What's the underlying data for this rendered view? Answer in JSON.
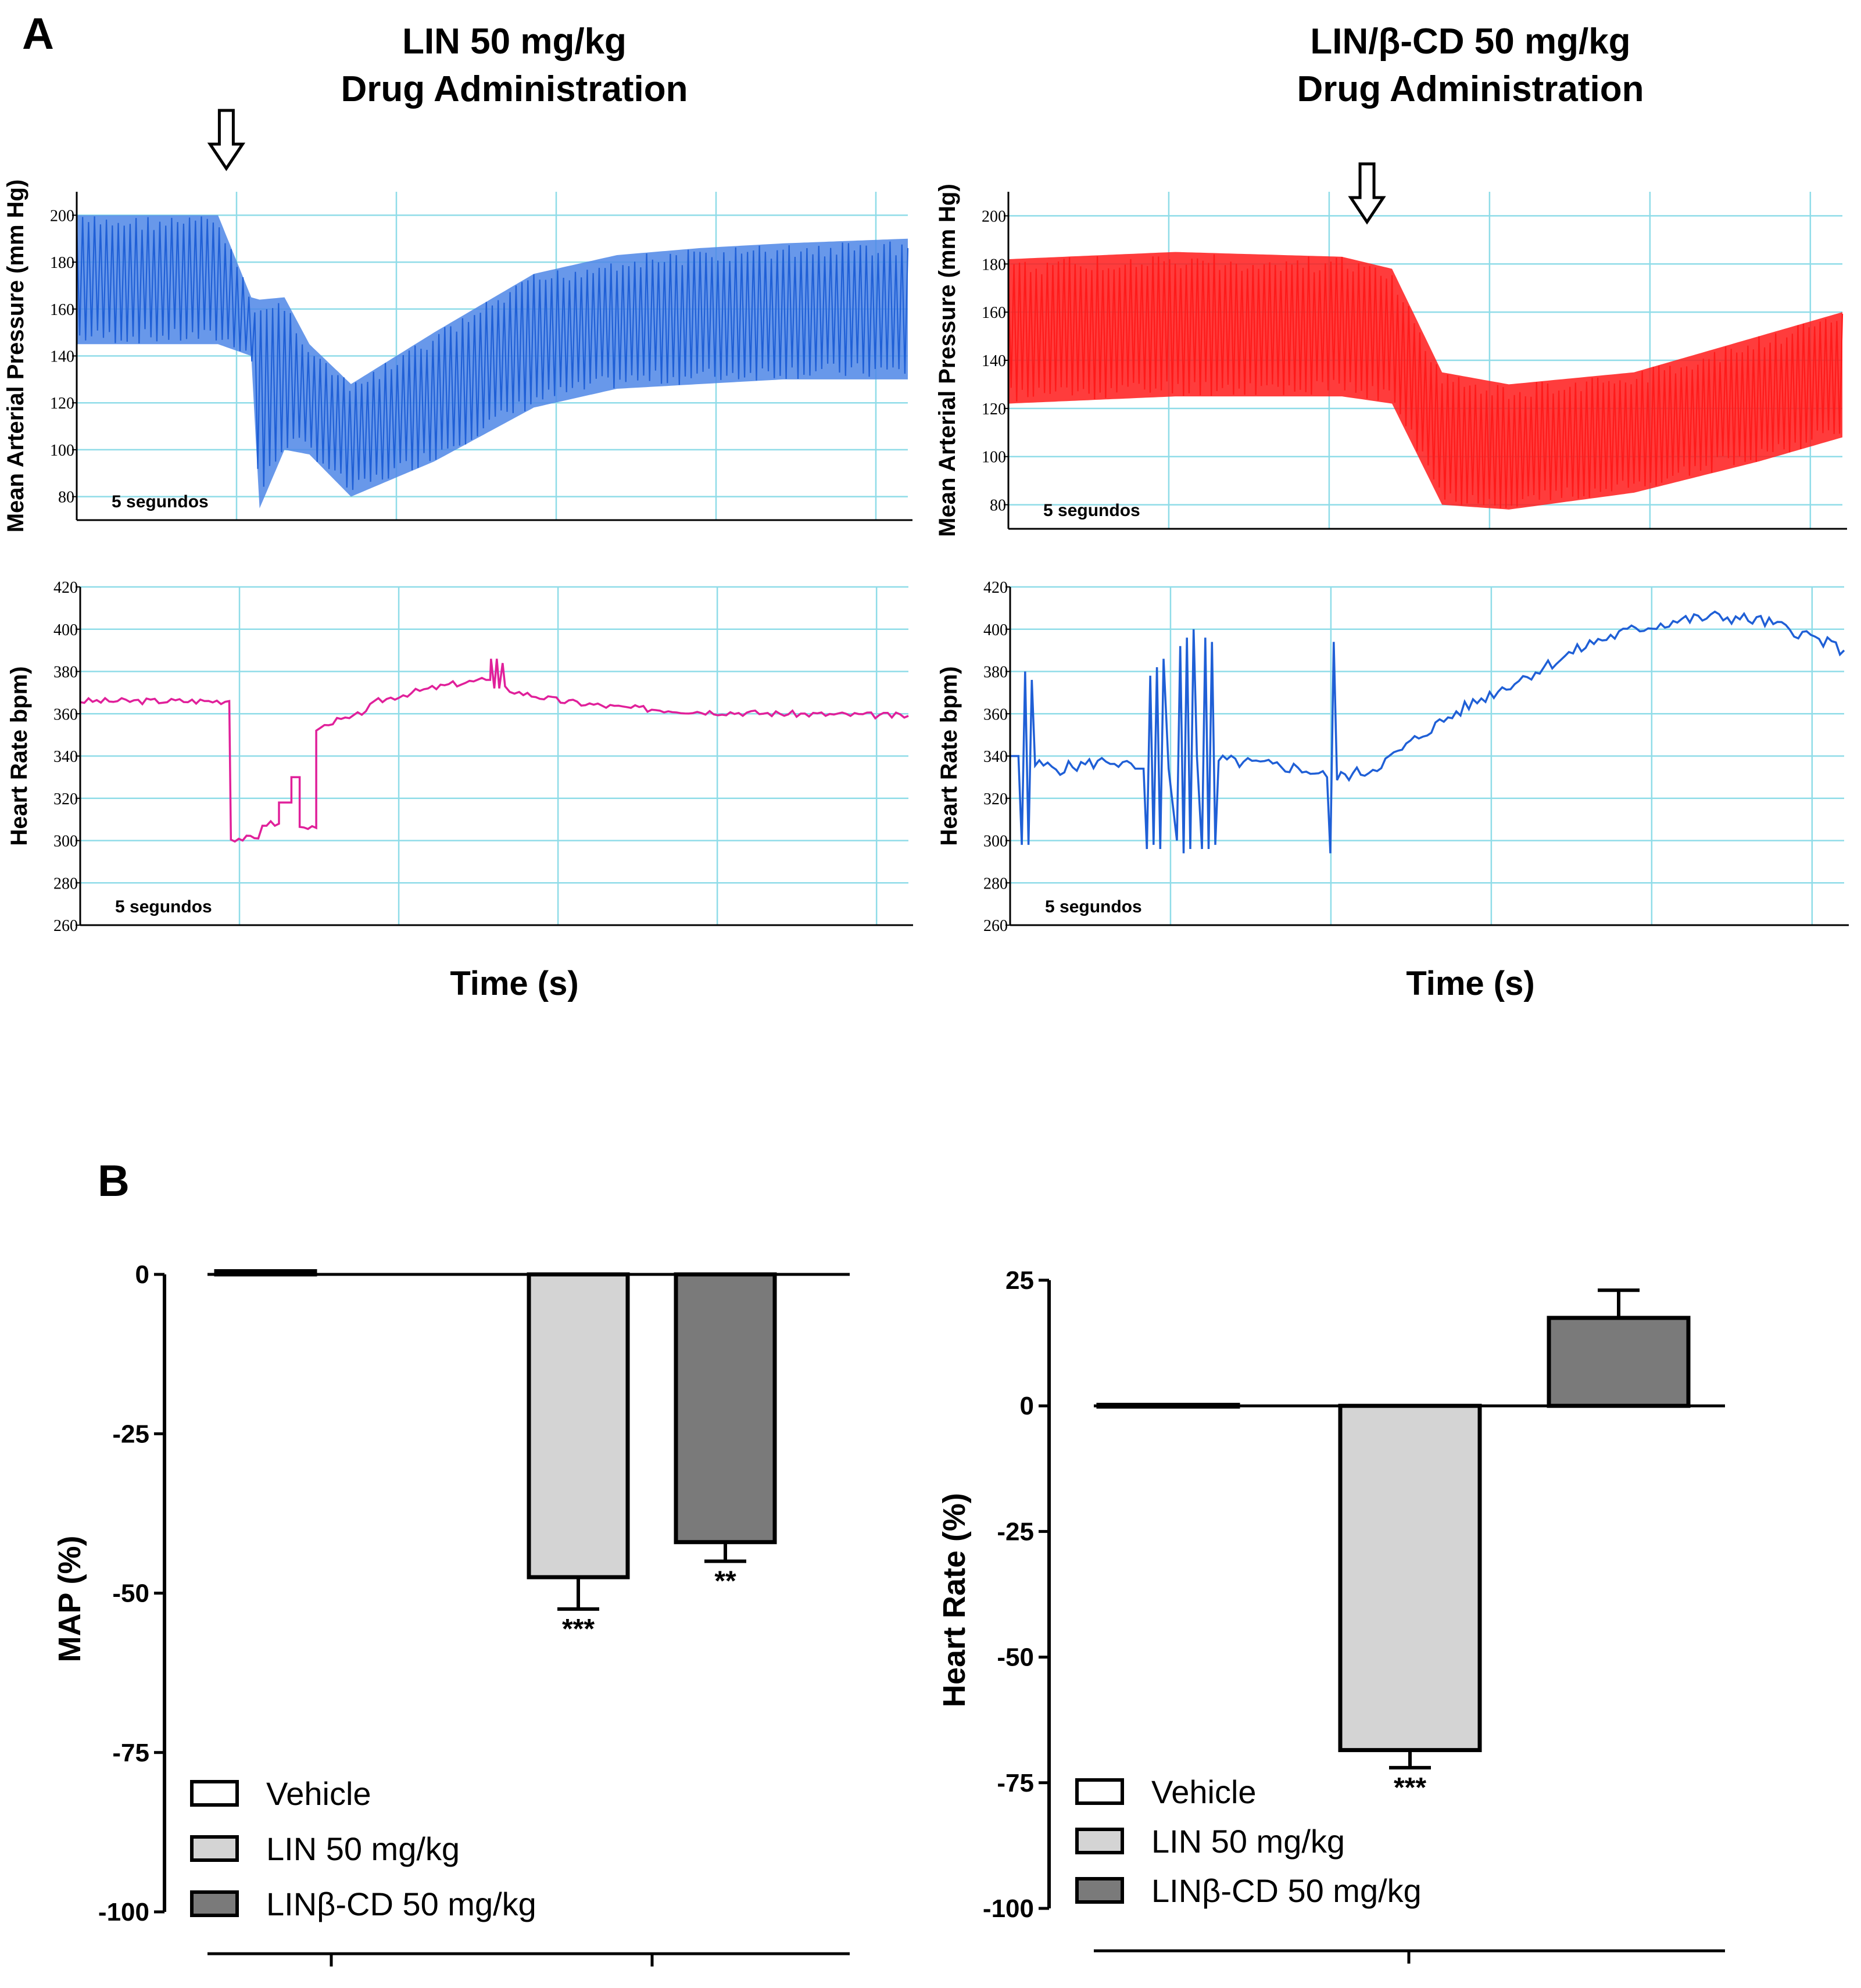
{
  "panels": {
    "A": {
      "letter": "A",
      "scale_label": "5 segundos",
      "time_label_left": "Time  (s)",
      "time_label_right": "Time (s)",
      "left_column": {
        "title_line1": "LIN 50 mg/kg",
        "title_line2": "Drug Administration"
      },
      "right_column": {
        "title_line1": "LIN/β-CD 50 mg/kg",
        "title_line2": "Drug Administration"
      }
    },
    "B": {
      "letter": "B"
    }
  },
  "colors": {
    "trace_blue": "#1f5fd6",
    "trace_blue_light": "#4d86e6",
    "trace_red": "#ff1a1a",
    "trace_pink": "#e0209a",
    "grid": "#8fdce8",
    "vehicle": "#ffffff",
    "lin": "#d4d4d4",
    "lincd": "#7a7a7a"
  },
  "chart_data": [
    {
      "id": "map_trace_lin",
      "type": "line",
      "title": "LIN 50 mg/kg Drug Administration",
      "ylabel": "Mean Arterial Pressure (mm Hg)",
      "xlabel": "Time  (s)",
      "yticks": [
        "80",
        "100",
        "120",
        "140",
        "160",
        "180",
        "200"
      ],
      "ylim": [
        70,
        210
      ],
      "x_range_s": [
        0,
        100
      ],
      "injection_time_s": 18,
      "envelope": {
        "t": [
          0,
          17,
          21,
          22,
          25,
          28,
          33,
          43,
          55,
          65,
          75,
          85,
          100
        ],
        "upper": [
          200,
          200,
          165,
          164,
          165,
          145,
          128,
          150,
          175,
          183,
          186,
          188,
          190
        ],
        "lower": [
          145,
          145,
          140,
          75,
          100,
          98,
          80,
          95,
          118,
          126,
          128,
          130,
          130
        ]
      }
    },
    {
      "id": "map_trace_lincd",
      "type": "line",
      "title": "LIN/β-CD 50 mg/kg Drug Administration",
      "ylabel": "Mean Arterial Pressure (mm Hg)",
      "xlabel": "Time (s)",
      "yticks": [
        "80",
        "100",
        "120",
        "140",
        "160",
        "180",
        "200"
      ],
      "ylim": [
        70,
        210
      ],
      "x_range_s": [
        0,
        100
      ],
      "injection_time_s": 43,
      "envelope": {
        "t": [
          0,
          20,
          40,
          46,
          52,
          60,
          75,
          90,
          100
        ],
        "upper": [
          182,
          185,
          183,
          178,
          135,
          130,
          135,
          150,
          160
        ],
        "lower": [
          122,
          125,
          125,
          122,
          80,
          78,
          85,
          98,
          108
        ]
      }
    },
    {
      "id": "hr_trace_lin",
      "type": "line",
      "ylabel": "Heart Rate bpm)",
      "xlabel": "Time  (s)",
      "yticks": [
        "260",
        "280",
        "300",
        "320",
        "340",
        "360",
        "380",
        "400",
        "420"
      ],
      "ylim": [
        260,
        420
      ],
      "x_range_s": [
        0,
        100
      ],
      "points": [
        [
          0,
          366
        ],
        [
          8,
          366
        ],
        [
          18,
          366
        ],
        [
          18.2,
          301
        ],
        [
          21.5,
          301
        ],
        [
          22,
          308
        ],
        [
          24,
          308
        ],
        [
          24,
          318
        ],
        [
          25.5,
          318
        ],
        [
          25.5,
          330
        ],
        [
          26.5,
          330
        ],
        [
          26.5,
          306
        ],
        [
          28.5,
          306
        ],
        [
          28.5,
          352
        ],
        [
          30,
          356
        ],
        [
          33,
          358
        ],
        [
          36,
          366
        ],
        [
          40,
          370
        ],
        [
          45,
          374
        ],
        [
          49,
          376
        ],
        [
          49.5,
          376
        ],
        [
          49.6,
          386
        ],
        [
          50,
          372
        ],
        [
          50.3,
          386
        ],
        [
          50.6,
          372
        ],
        [
          51,
          384
        ],
        [
          51.3,
          372
        ],
        [
          53,
          370
        ],
        [
          58,
          366
        ],
        [
          65,
          363
        ],
        [
          75,
          361
        ],
        [
          85,
          360
        ],
        [
          100,
          359
        ]
      ],
      "jitter": 1.5
    },
    {
      "id": "hr_trace_lincd",
      "type": "line",
      "ylabel": "Heart Rate bpm)",
      "xlabel": "Time (s)",
      "yticks": [
        "260",
        "280",
        "300",
        "320",
        "340",
        "360",
        "380",
        "400",
        "420"
      ],
      "ylim": [
        260,
        420
      ],
      "x_range_s": [
        0,
        100
      ],
      "points": [
        [
          0,
          340
        ],
        [
          1,
          340
        ],
        [
          1.4,
          298
        ],
        [
          1.8,
          380
        ],
        [
          2.2,
          298
        ],
        [
          2.6,
          376
        ],
        [
          3,
          336
        ],
        [
          6,
          334
        ],
        [
          9,
          336
        ],
        [
          12,
          338
        ],
        [
          15,
          334
        ],
        [
          16,
          334
        ],
        [
          16.4,
          296
        ],
        [
          16.8,
          378
        ],
        [
          17.2,
          298
        ],
        [
          17.6,
          382
        ],
        [
          18,
          296
        ],
        [
          18.4,
          386
        ],
        [
          19,
          334
        ],
        [
          20,
          300
        ],
        [
          20.4,
          392
        ],
        [
          20.8,
          294
        ],
        [
          21.2,
          396
        ],
        [
          21.6,
          296
        ],
        [
          22,
          400
        ],
        [
          22.4,
          340
        ],
        [
          23,
          296
        ],
        [
          23.4,
          396
        ],
        [
          23.8,
          296
        ],
        [
          24.2,
          394
        ],
        [
          24.6,
          298
        ],
        [
          25,
          338
        ],
        [
          30,
          336
        ],
        [
          35,
          334
        ],
        [
          38,
          330
        ],
        [
          38.4,
          294
        ],
        [
          38.8,
          394
        ],
        [
          39.2,
          330
        ],
        [
          43,
          333
        ],
        [
          46,
          340
        ],
        [
          50,
          352
        ],
        [
          55,
          364
        ],
        [
          60,
          374
        ],
        [
          65,
          384
        ],
        [
          70,
          394
        ],
        [
          75,
          400
        ],
        [
          80,
          404
        ],
        [
          85,
          406
        ],
        [
          90,
          404
        ],
        [
          95,
          398
        ],
        [
          100,
          390
        ]
      ],
      "jitter": 3
    },
    {
      "id": "map_bar",
      "type": "bar",
      "ylabel": "MAP (%)",
      "yticks": [
        "0",
        "-25",
        "-50",
        "-75",
        "-100"
      ],
      "ylim": [
        -100,
        0
      ],
      "categories": [
        "Vehicle",
        "LIN 50 mg/kg",
        "LINβ-CD 50 mg/kg"
      ],
      "legend": [
        "Vehicle",
        "LIN 50 mg/kg",
        "LINβ-CD 50 mg/kg"
      ],
      "values": [
        0.5,
        -47.5,
        -42
      ],
      "errors": [
        0.3,
        5,
        3
      ],
      "significance": [
        "",
        "***",
        "**"
      ]
    },
    {
      "id": "hr_bar",
      "type": "bar",
      "ylabel": "Heart Rate (%)",
      "yticks": [
        "25",
        "0",
        "-25",
        "-50",
        "-75",
        "-100"
      ],
      "ylim": [
        -100,
        25
      ],
      "categories": [
        "Vehicle",
        "LIN 50 mg/kg",
        "LINβ-CD 50 mg/kg"
      ],
      "legend": [
        "Vehicle",
        "LIN 50 mg/kg",
        "LINβ-CD 50 mg/kg"
      ],
      "values": [
        0.2,
        -68.5,
        17.5
      ],
      "errors": [
        0.2,
        3.5,
        5.5
      ],
      "significance": [
        "",
        "***",
        ""
      ]
    }
  ]
}
